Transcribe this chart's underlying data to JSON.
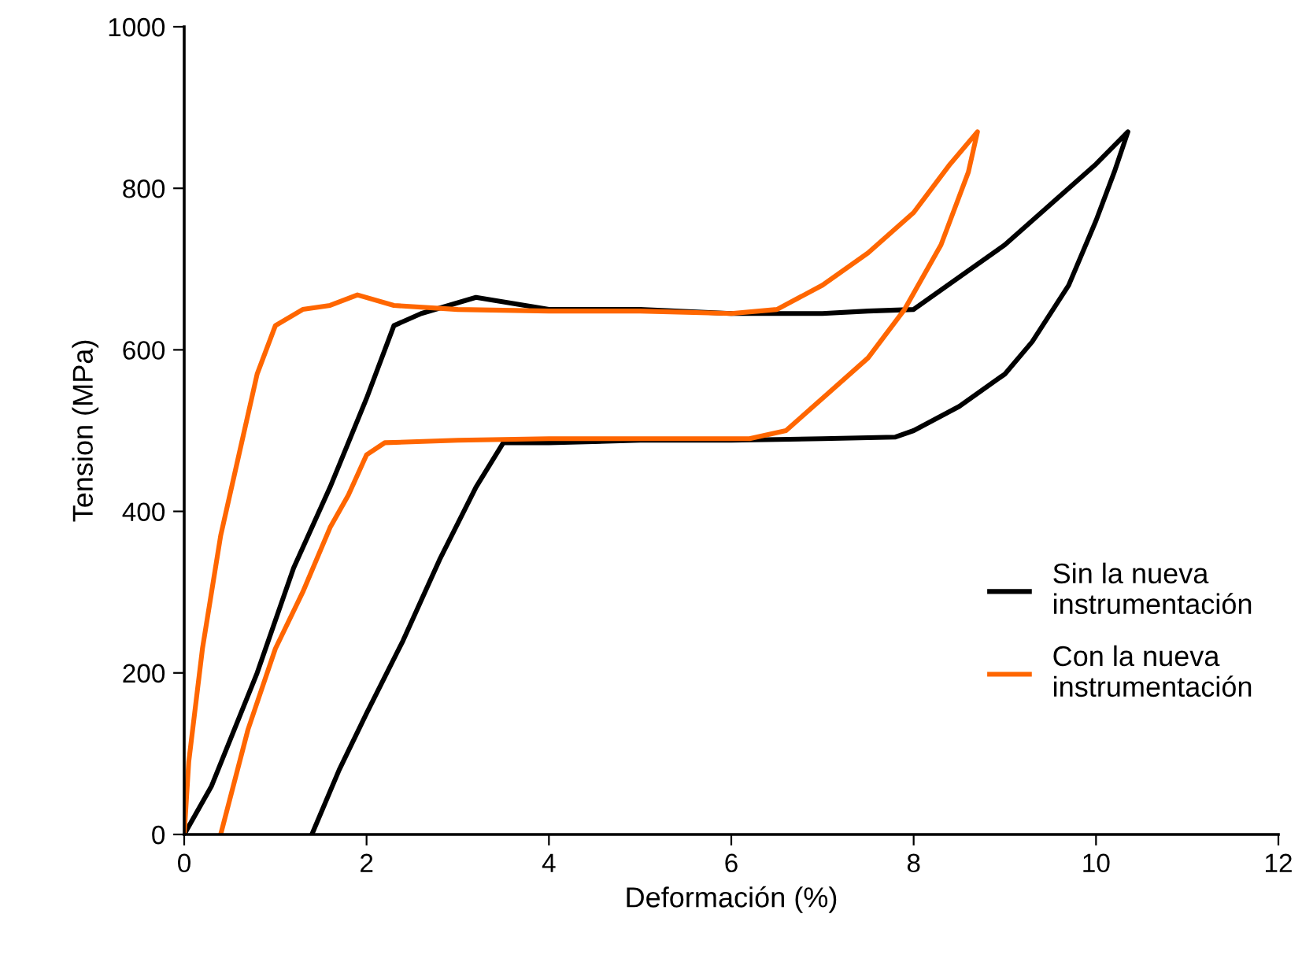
{
  "chart_data": {
    "type": "line",
    "xlabel": "Deformación (%)",
    "ylabel": "Tension (MPa)",
    "xlim": [
      0,
      12
    ],
    "ylim": [
      0,
      1000
    ],
    "xticks": [
      0,
      2,
      4,
      6,
      8,
      10,
      12
    ],
    "yticks": [
      0,
      200,
      400,
      600,
      800,
      1000
    ],
    "grid": false,
    "legend": "right",
    "marker": "none",
    "line_style": "solid",
    "series": [
      {
        "name": "Sin la nueva\ninstrumentación",
        "color": "#000000",
        "x": [
          0,
          0.3,
          0.8,
          1.2,
          1.6,
          2.0,
          2.3,
          2.6,
          3.2,
          4,
          5,
          6,
          7,
          7.5,
          8,
          8.5,
          9,
          9.5,
          10,
          10.35,
          10.2,
          10,
          9.7,
          9.3,
          9,
          8.5,
          8.0,
          7.8,
          7,
          6,
          5,
          4,
          3.5,
          3.2,
          2.8,
          2.4,
          2.0,
          1.7,
          1.4
        ],
        "values": [
          0,
          60,
          200,
          330,
          430,
          540,
          630,
          645,
          665,
          650,
          650,
          645,
          645,
          648,
          650,
          690,
          730,
          780,
          830,
          870,
          820,
          760,
          680,
          610,
          570,
          530,
          500,
          492,
          490,
          488,
          488,
          485,
          485,
          430,
          340,
          240,
          150,
          80,
          0
        ]
      },
      {
        "name": "Con la nueva\ninstrumentación",
        "color": "#ff6600",
        "x": [
          0,
          0.05,
          0.2,
          0.4,
          0.6,
          0.8,
          1.0,
          1.3,
          1.6,
          1.9,
          2.3,
          3,
          4,
          5,
          6,
          6.5,
          7,
          7.5,
          8,
          8.4,
          8.7,
          8.6,
          8.3,
          7.9,
          7.5,
          7.0,
          6.6,
          6.2,
          5,
          4,
          3,
          2.2,
          2.0,
          1.8,
          1.6,
          1.3,
          1.0,
          0.7,
          0.4
        ],
        "values": [
          0,
          90,
          230,
          370,
          470,
          570,
          630,
          650,
          655,
          668,
          655,
          650,
          648,
          648,
          645,
          650,
          680,
          720,
          770,
          830,
          870,
          820,
          730,
          650,
          590,
          540,
          500,
          490,
          490,
          490,
          488,
          485,
          470,
          420,
          380,
          300,
          230,
          130,
          0
        ]
      }
    ]
  }
}
